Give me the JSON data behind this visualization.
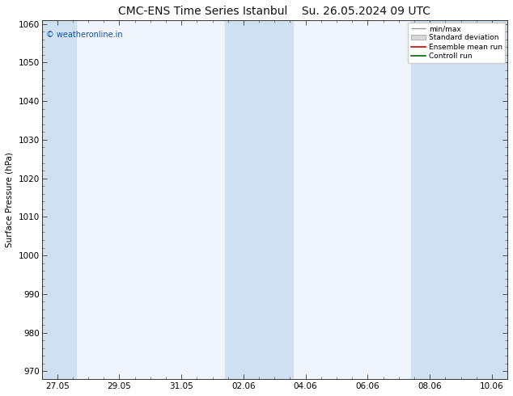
{
  "title": "CMC-ENS Time Series Istanbul",
  "title2": "Su. 26.05.2024 09 UTC",
  "ylabel": "Surface Pressure (hPa)",
  "ylim": [
    968,
    1061
  ],
  "yticks": [
    970,
    980,
    990,
    1000,
    1010,
    1020,
    1030,
    1040,
    1050,
    1060
  ],
  "xtick_labels": [
    "27.05",
    "29.05",
    "31.05",
    "02.06",
    "04.06",
    "06.06",
    "08.06",
    "10.06"
  ],
  "xtick_positions": [
    0,
    2,
    4,
    6,
    8,
    10,
    12,
    14
  ],
  "xlim": [
    -0.5,
    14.5
  ],
  "background_color": "#ffffff",
  "plot_bg_color": "#f0f5fc",
  "band_color": "#cfe0f0",
  "watermark": "© weatheronline.in",
  "legend_entries": [
    "min/max",
    "Standard deviation",
    "Ensemble mean run",
    "Controll run"
  ],
  "title_fontsize": 10,
  "axis_fontsize": 7.5,
  "watermark_color": "#1a52a8",
  "band_ranges": [
    [
      -0.5,
      0.6
    ],
    [
      5.4,
      7.6
    ],
    [
      11.4,
      14.5
    ]
  ]
}
